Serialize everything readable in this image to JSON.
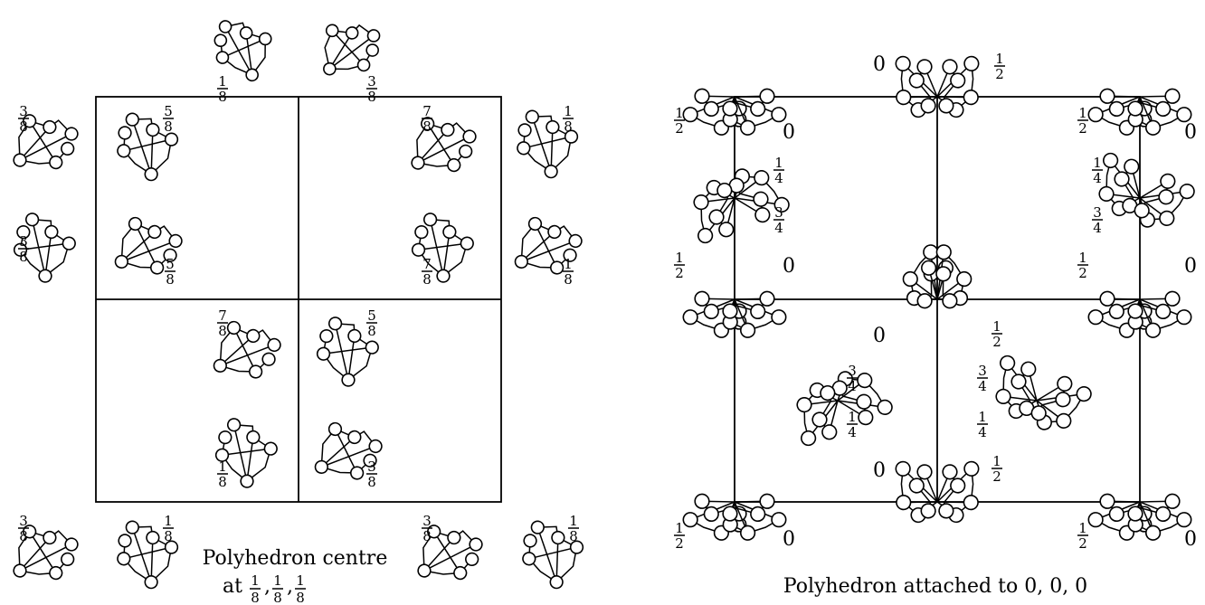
{
  "left_panel": {
    "caption_line1": "Polyhedron centre",
    "caption_line2": "at",
    "centre_coords": [
      "1",
      "8",
      "1",
      "8",
      "1",
      "8"
    ],
    "heights": [
      {
        "num": "1",
        "den": "8"
      },
      {
        "num": "3",
        "den": "8"
      },
      {
        "num": "3",
        "den": "8"
      },
      {
        "num": "1",
        "den": "8"
      },
      {
        "num": "3",
        "den": "8"
      },
      {
        "num": "1",
        "den": "8"
      },
      {
        "num": "5",
        "den": "8"
      },
      {
        "num": "7",
        "den": "8"
      },
      {
        "num": "5",
        "den": "8"
      },
      {
        "num": "7",
        "den": "8"
      },
      {
        "num": "7",
        "den": "8"
      },
      {
        "num": "5",
        "den": "8"
      },
      {
        "num": "1",
        "den": "8"
      },
      {
        "num": "3",
        "den": "8"
      },
      {
        "num": "3",
        "den": "8"
      },
      {
        "num": "1",
        "den": "8"
      },
      {
        "num": "3",
        "den": "8"
      },
      {
        "num": "1",
        "den": "8"
      }
    ]
  },
  "right_panel": {
    "caption": "Polyhedron attached to 0, 0, 0",
    "zero_label": "0",
    "half": {
      "num": "1",
      "den": "2"
    },
    "quarter": {
      "num": "1",
      "den": "4"
    },
    "three_quarter": {
      "num": "3",
      "den": "4"
    }
  }
}
